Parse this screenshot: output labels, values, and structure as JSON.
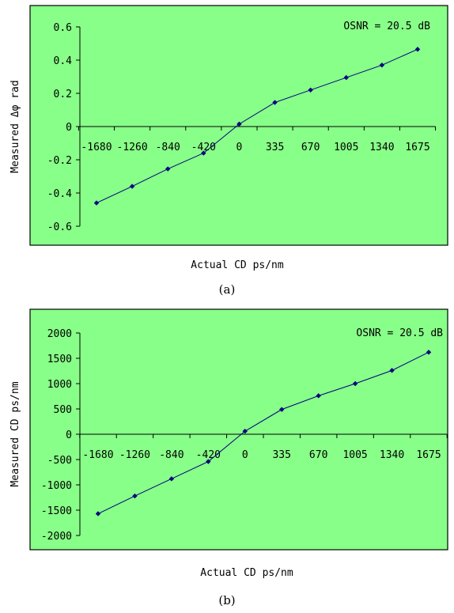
{
  "chart_data": [
    {
      "type": "line",
      "caption": "(a)",
      "annotation": "OSNR = 20.5 dB",
      "xlabel": "Actual CD  ps/nm",
      "ylabel": "Measured Δφ  rad",
      "categories": [
        "-1680",
        "-1260",
        "-840",
        "-420",
        "0",
        "335",
        "670",
        "1005",
        "1340",
        "1675"
      ],
      "values": [
        -0.46,
        -0.36,
        -0.255,
        -0.16,
        0.015,
        0.145,
        0.22,
        0.295,
        0.37,
        0.465
      ],
      "ylim": [
        -0.6,
        0.6
      ],
      "yticks": [
        -0.6,
        -0.4,
        -0.2,
        0,
        0.2,
        0.4,
        0.6
      ],
      "ytick_labels": [
        "-0.6",
        "-0.4",
        "-0.2",
        "0",
        "0.2",
        "0.4",
        "0.6"
      ],
      "grid": false,
      "colors": {
        "background": "#88ff88",
        "line": "#000080",
        "marker": "#000080"
      }
    },
    {
      "type": "line",
      "caption": "(b)",
      "annotation": "OSNR = 20.5 dB",
      "xlabel": "Actual CD  ps/nm",
      "ylabel": "Measured CD  ps/nm",
      "categories": [
        "-1680",
        "-1260",
        "-840",
        "-420",
        "0",
        "335",
        "670",
        "1005",
        "1340",
        "1675"
      ],
      "values": [
        -1570,
        -1220,
        -880,
        -540,
        60,
        490,
        760,
        1000,
        1260,
        1620
      ],
      "ylim": [
        -2000,
        2000
      ],
      "yticks": [
        -2000,
        -1500,
        -1000,
        -500,
        0,
        500,
        1000,
        1500,
        2000
      ],
      "ytick_labels": [
        "-2000",
        "-1500",
        "-1000",
        "-500",
        "0",
        "500",
        "1000",
        "1500",
        "2000"
      ],
      "grid": false,
      "colors": {
        "background": "#88ff88",
        "line": "#000080",
        "marker": "#000080"
      }
    }
  ]
}
